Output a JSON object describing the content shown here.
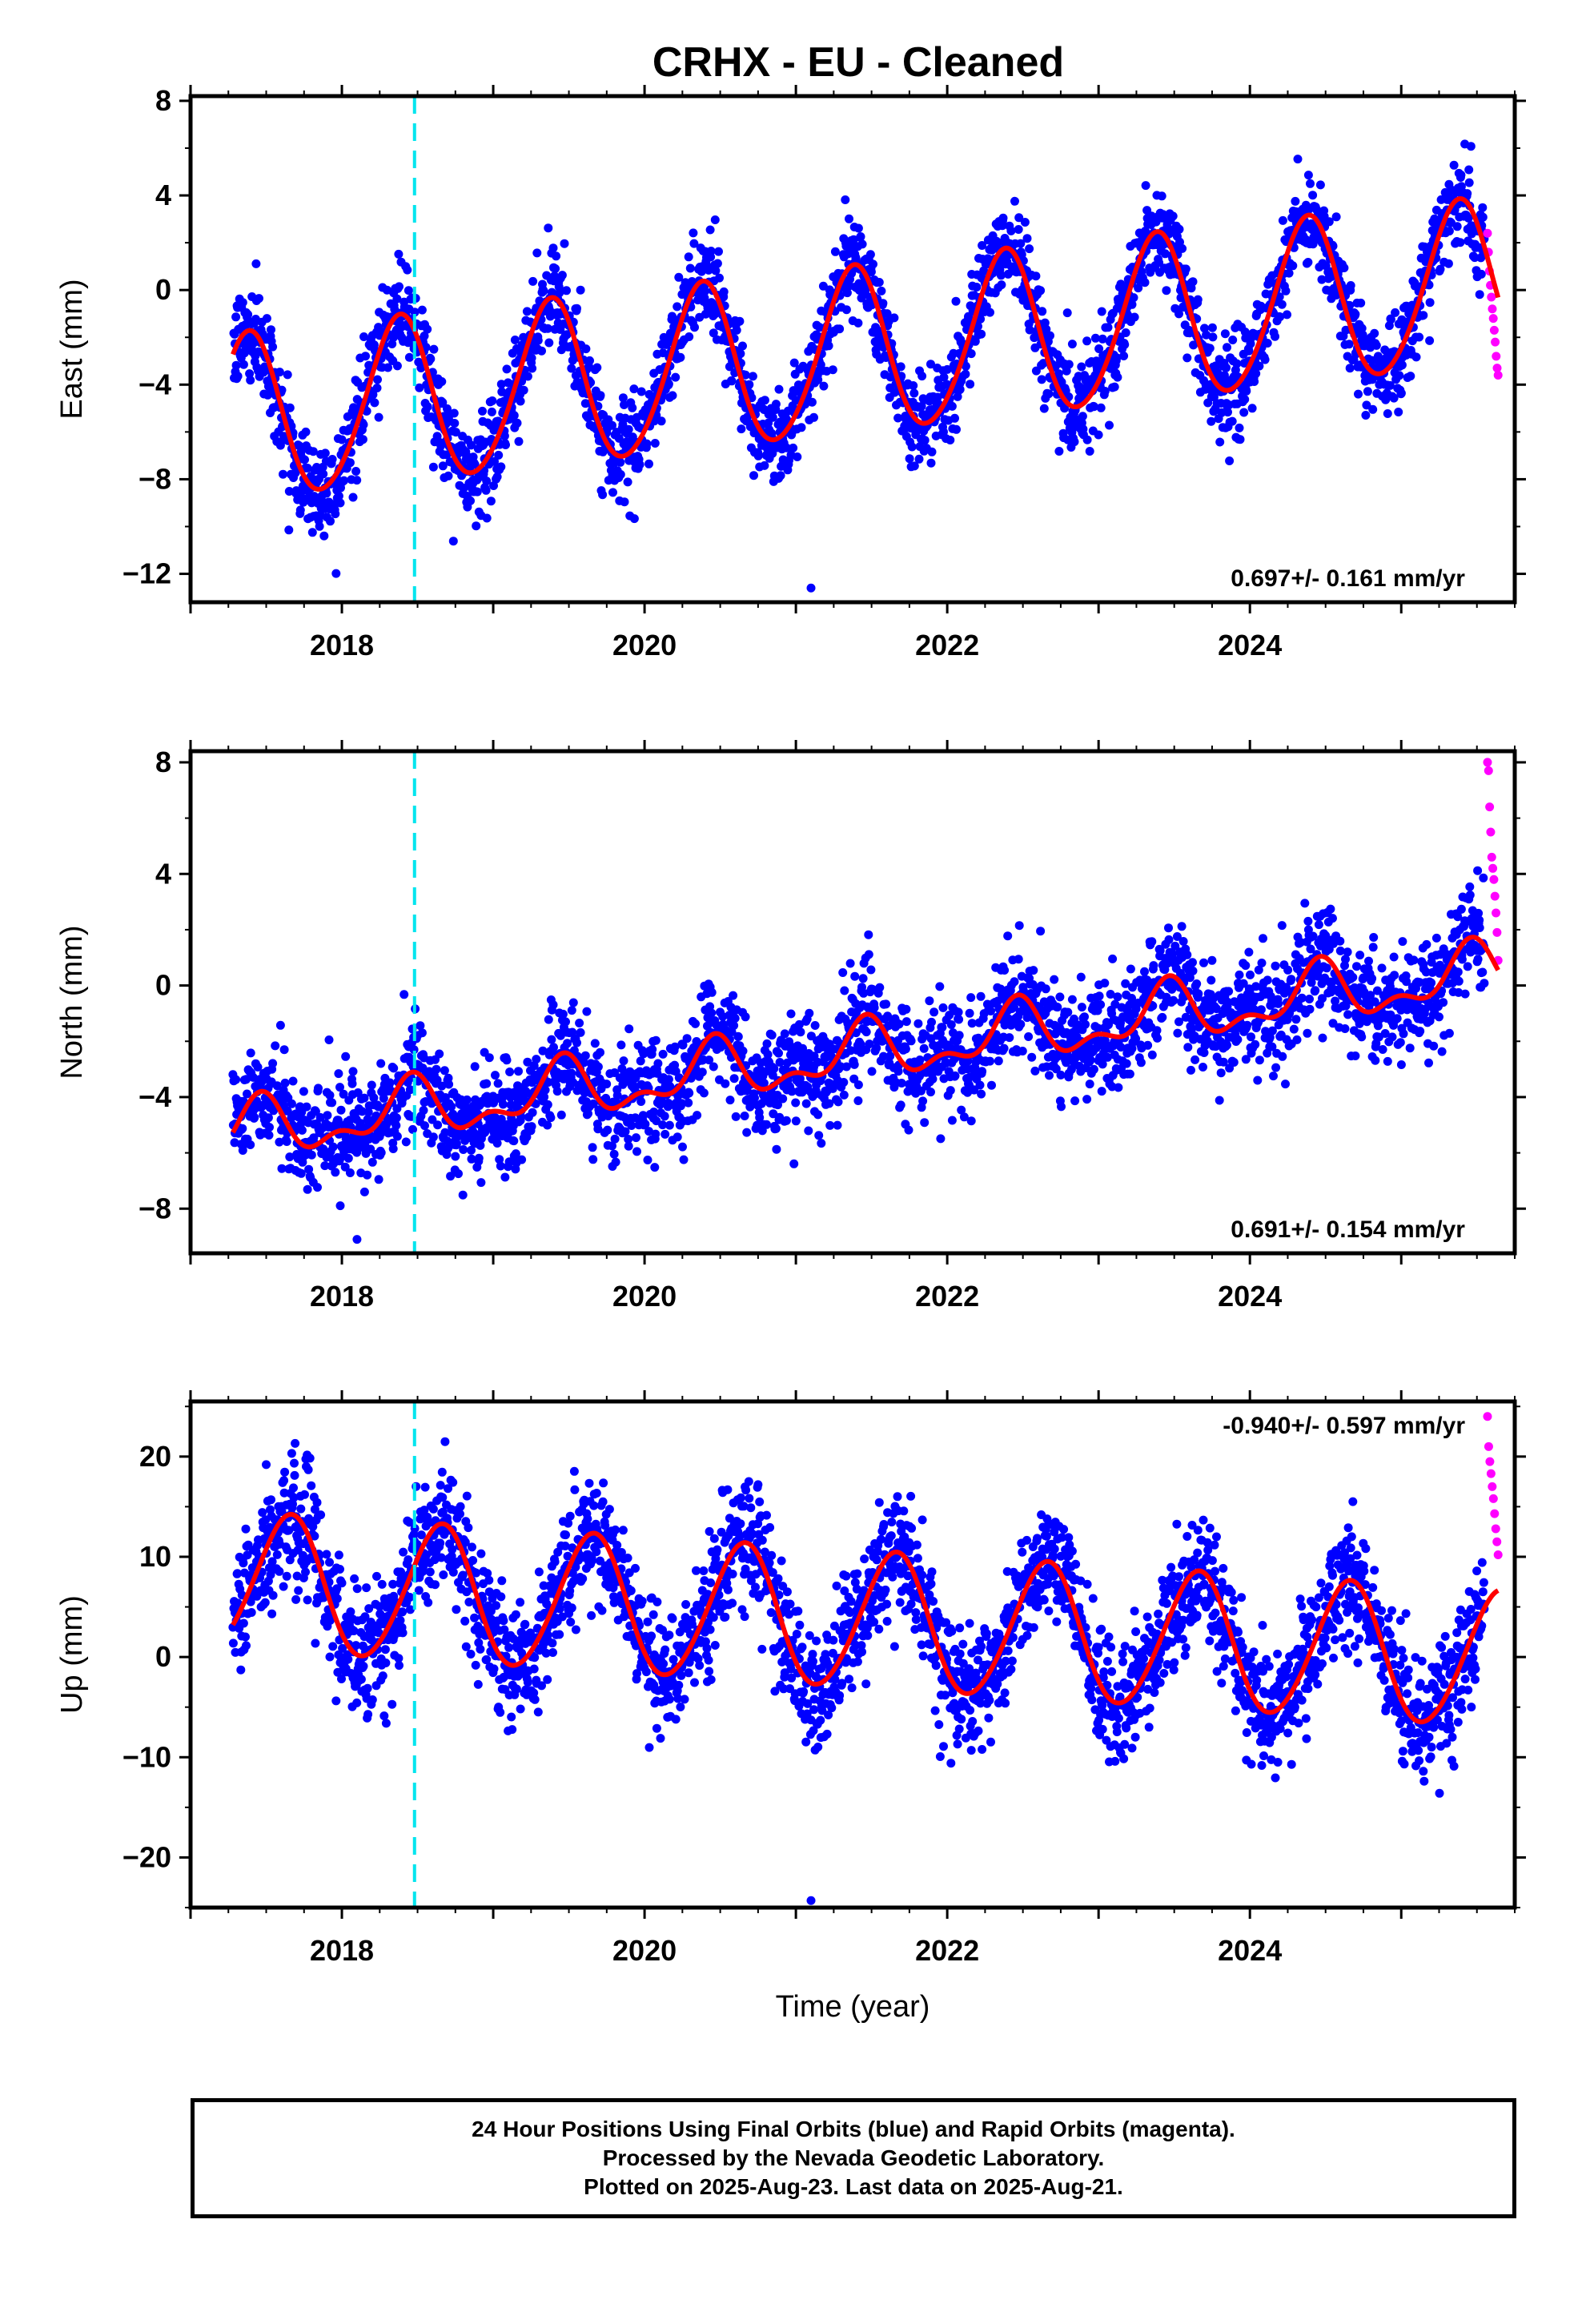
{
  "title": "CRHX  - EU - Cleaned",
  "footer": {
    "line1": "24 Hour Positions Using Final Orbits (blue) and Rapid Orbits (magenta).",
    "line2": "Processed by the Nevada Geodetic Laboratory.",
    "line3": "Plotted on 2025-Aug-23. Last data on 2025-Aug-21."
  },
  "colors": {
    "final_orbits": "#0000ff",
    "rapid_orbits": "#ff00ff",
    "model_fit": "#ff0000",
    "equipment_change": "#00e5ee"
  },
  "chart_data": [
    {
      "type": "scatter",
      "id": "east",
      "ylabel": "East (mm)",
      "xlabel": "",
      "xlim": [
        2017.0,
        2025.75
      ],
      "ylim": [
        -13.2,
        8.2
      ],
      "yticks": [
        8,
        4,
        0,
        -4,
        -8,
        -12
      ],
      "ytick_labels": [
        "8",
        "4",
        "0",
        "−4",
        "−8",
        "−12"
      ],
      "xticks": [
        2018,
        2020,
        2022,
        2024
      ],
      "xtick_labels": [
        "2018",
        "2020",
        "2022",
        "2024"
      ],
      "rate_label": "0.697+/- 0.161 mm/yr",
      "rate_position": "bottom-right",
      "marker_year": 2018.48,
      "model": {
        "offset": -2.6,
        "rate": 0.697,
        "annual_amp": 3.5,
        "annual_phase": 0.125,
        "semi_amp": 0.3,
        "semi_phase": 0.3
      },
      "noise": 1.0,
      "series": [
        {
          "name": "Final Orbits",
          "x_start": 2017.28,
          "x_end": 2025.55,
          "color": "#0000ff"
        },
        {
          "name": "Rapid Orbits",
          "x_start": 2025.57,
          "x_end": 2025.64,
          "color": "#ff00ff",
          "y": [
            2.4,
            1.6,
            0.8,
            0.2,
            -0.3,
            -0.8,
            -1.2,
            -1.7,
            -2.2,
            -2.8,
            -3.3,
            -3.6
          ]
        }
      ],
      "outliers": [
        {
          "x": 2021.1,
          "y": -12.6
        }
      ]
    },
    {
      "type": "scatter",
      "id": "north",
      "ylabel": "North (mm)",
      "xlabel": "",
      "xlim": [
        2017.0,
        2025.75
      ],
      "ylim": [
        -9.6,
        8.4
      ],
      "yticks": [
        8,
        4,
        0,
        -4,
        -8
      ],
      "ytick_labels": [
        "8",
        "4",
        "0",
        "−4",
        "−8"
      ],
      "xticks": [
        2018,
        2020,
        2022,
        2024
      ],
      "xtick_labels": [
        "2018",
        "2020",
        "2022",
        "2024"
      ],
      "rate_label": "0.691+/- 0.154 mm/yr",
      "rate_position": "bottom-right",
      "marker_year": 2018.48,
      "model": {
        "offset": -2.4,
        "rate": 0.691,
        "annual_amp": 0.9,
        "annual_phase": 0.2,
        "semi_amp": 0.5,
        "semi_phase": 0.35
      },
      "noise": 0.95,
      "series": [
        {
          "name": "Final Orbits",
          "x_start": 2017.28,
          "x_end": 2025.55,
          "color": "#0000ff"
        },
        {
          "name": "Rapid Orbits",
          "x_start": 2025.57,
          "x_end": 2025.64,
          "color": "#ff00ff",
          "y": [
            8.0,
            7.7,
            6.4,
            5.5,
            4.6,
            4.2,
            3.8,
            3.2,
            2.6,
            1.9,
            0.9
          ]
        }
      ],
      "outliers": [
        {
          "x": 2018.1,
          "y": -9.1
        },
        {
          "x": 2018.15,
          "y": -7.4
        },
        {
          "x": 2017.7,
          "y": -6.1
        }
      ]
    },
    {
      "type": "scatter",
      "id": "up",
      "ylabel": "Up (mm)",
      "xlabel": "Time (year)",
      "xlim": [
        2017.0,
        2025.75
      ],
      "ylim": [
        -25.0,
        25.5
      ],
      "yticks": [
        20,
        10,
        0,
        -10,
        -20
      ],
      "ytick_labels": [
        "20",
        "10",
        "0",
        "−10",
        "−20"
      ],
      "xticks": [
        2018,
        2020,
        2022,
        2024
      ],
      "xtick_labels": [
        "2018",
        "2020",
        "2022",
        "2024"
      ],
      "rate_label": "-0.940+/- 0.597 mm/yr",
      "rate_position": "top-right",
      "marker_year": 2018.48,
      "model": {
        "offset": 3.5,
        "rate": -0.94,
        "annual_amp": 6.8,
        "annual_phase": 0.4,
        "semi_amp": 0.5,
        "semi_phase": 0.1
      },
      "noise": 3.0,
      "series": [
        {
          "name": "Final Orbits",
          "x_start": 2017.28,
          "x_end": 2025.55,
          "color": "#0000ff"
        },
        {
          "name": "Rapid Orbits",
          "x_start": 2025.57,
          "x_end": 2025.64,
          "color": "#ff00ff",
          "y": [
            24.0,
            21.0,
            19.5,
            18.3,
            17.0,
            15.8,
            14.3,
            12.8,
            11.5,
            10.2
          ]
        }
      ],
      "outliers": [
        {
          "x": 2021.1,
          "y": -24.3
        },
        {
          "x": 2017.5,
          "y": 19.2
        },
        {
          "x": 2020.75,
          "y": 17.2
        }
      ]
    }
  ]
}
